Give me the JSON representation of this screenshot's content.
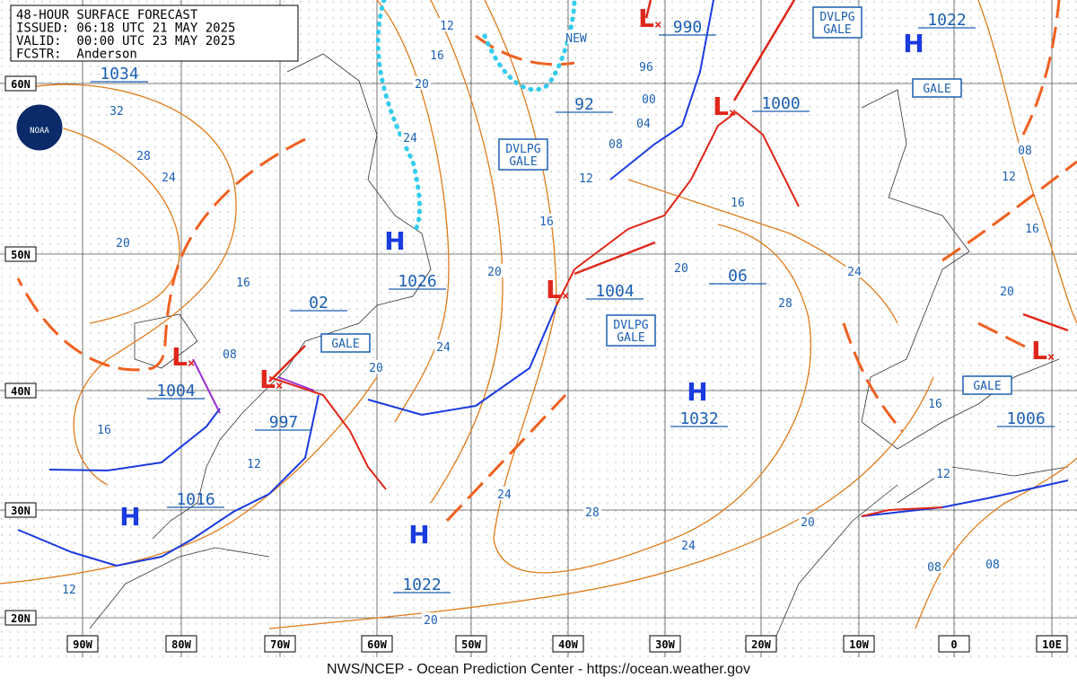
{
  "header": {
    "lines": [
      "48-HOUR SURFACE FORECAST",
      "ISSUED: 06:18 UTC 21 MAY 2025",
      "VALID:  00:00 UTC 23 MAY 2025",
      "FCSTR:  Anderson"
    ]
  },
  "logo": "NOAA",
  "latitudes": [
    "60N",
    "50N",
    "40N",
    "30N",
    "20N"
  ],
  "longitudes": [
    "90W",
    "80W",
    "70W",
    "60W",
    "50W",
    "40W",
    "30W",
    "20W",
    "10W",
    "0",
    "10E"
  ],
  "centers": [
    {
      "symbol": "H",
      "label": "1026"
    },
    {
      "symbol": "L",
      "label": "1004"
    },
    {
      "symbol": "L",
      "label": "997"
    },
    {
      "symbol": "H",
      "label": "1016"
    },
    {
      "symbol": "H",
      "label": "1022"
    },
    {
      "symbol": "H",
      "label": "1032"
    },
    {
      "symbol": "L",
      "label": "1004"
    },
    {
      "symbol": "L",
      "label": "1000"
    },
    {
      "symbol": "L",
      "label": "990"
    },
    {
      "symbol": "H",
      "label": "1022"
    },
    {
      "symbol": "L",
      "label": "1006"
    }
  ],
  "boxed_labels": [
    "1034",
    "02",
    "06",
    "92"
  ],
  "warnings": [
    [
      "DVLPG",
      "GALE"
    ],
    [
      "GALE"
    ],
    [
      "DVLPG",
      "GALE"
    ],
    [
      "DVLPG",
      "GALE"
    ],
    [
      "GALE"
    ],
    [
      "GALE"
    ]
  ],
  "isobar_labels": [
    "12",
    "16",
    "20",
    "24",
    "32",
    "28",
    "24",
    "20",
    "16",
    "08",
    "16",
    "12",
    "12",
    "20",
    "24",
    "28",
    "24",
    "20",
    "08",
    "08",
    "12",
    "16",
    "20",
    "16",
    "12",
    "08",
    "24",
    "28",
    "20",
    "16",
    "12",
    "08",
    "04",
    "00",
    "96",
    "20",
    "16",
    "24",
    "20",
    "NEW"
  ],
  "footer": "NWS/NCEP - Ocean Prediction Center - https://ocean.weather.gov"
}
